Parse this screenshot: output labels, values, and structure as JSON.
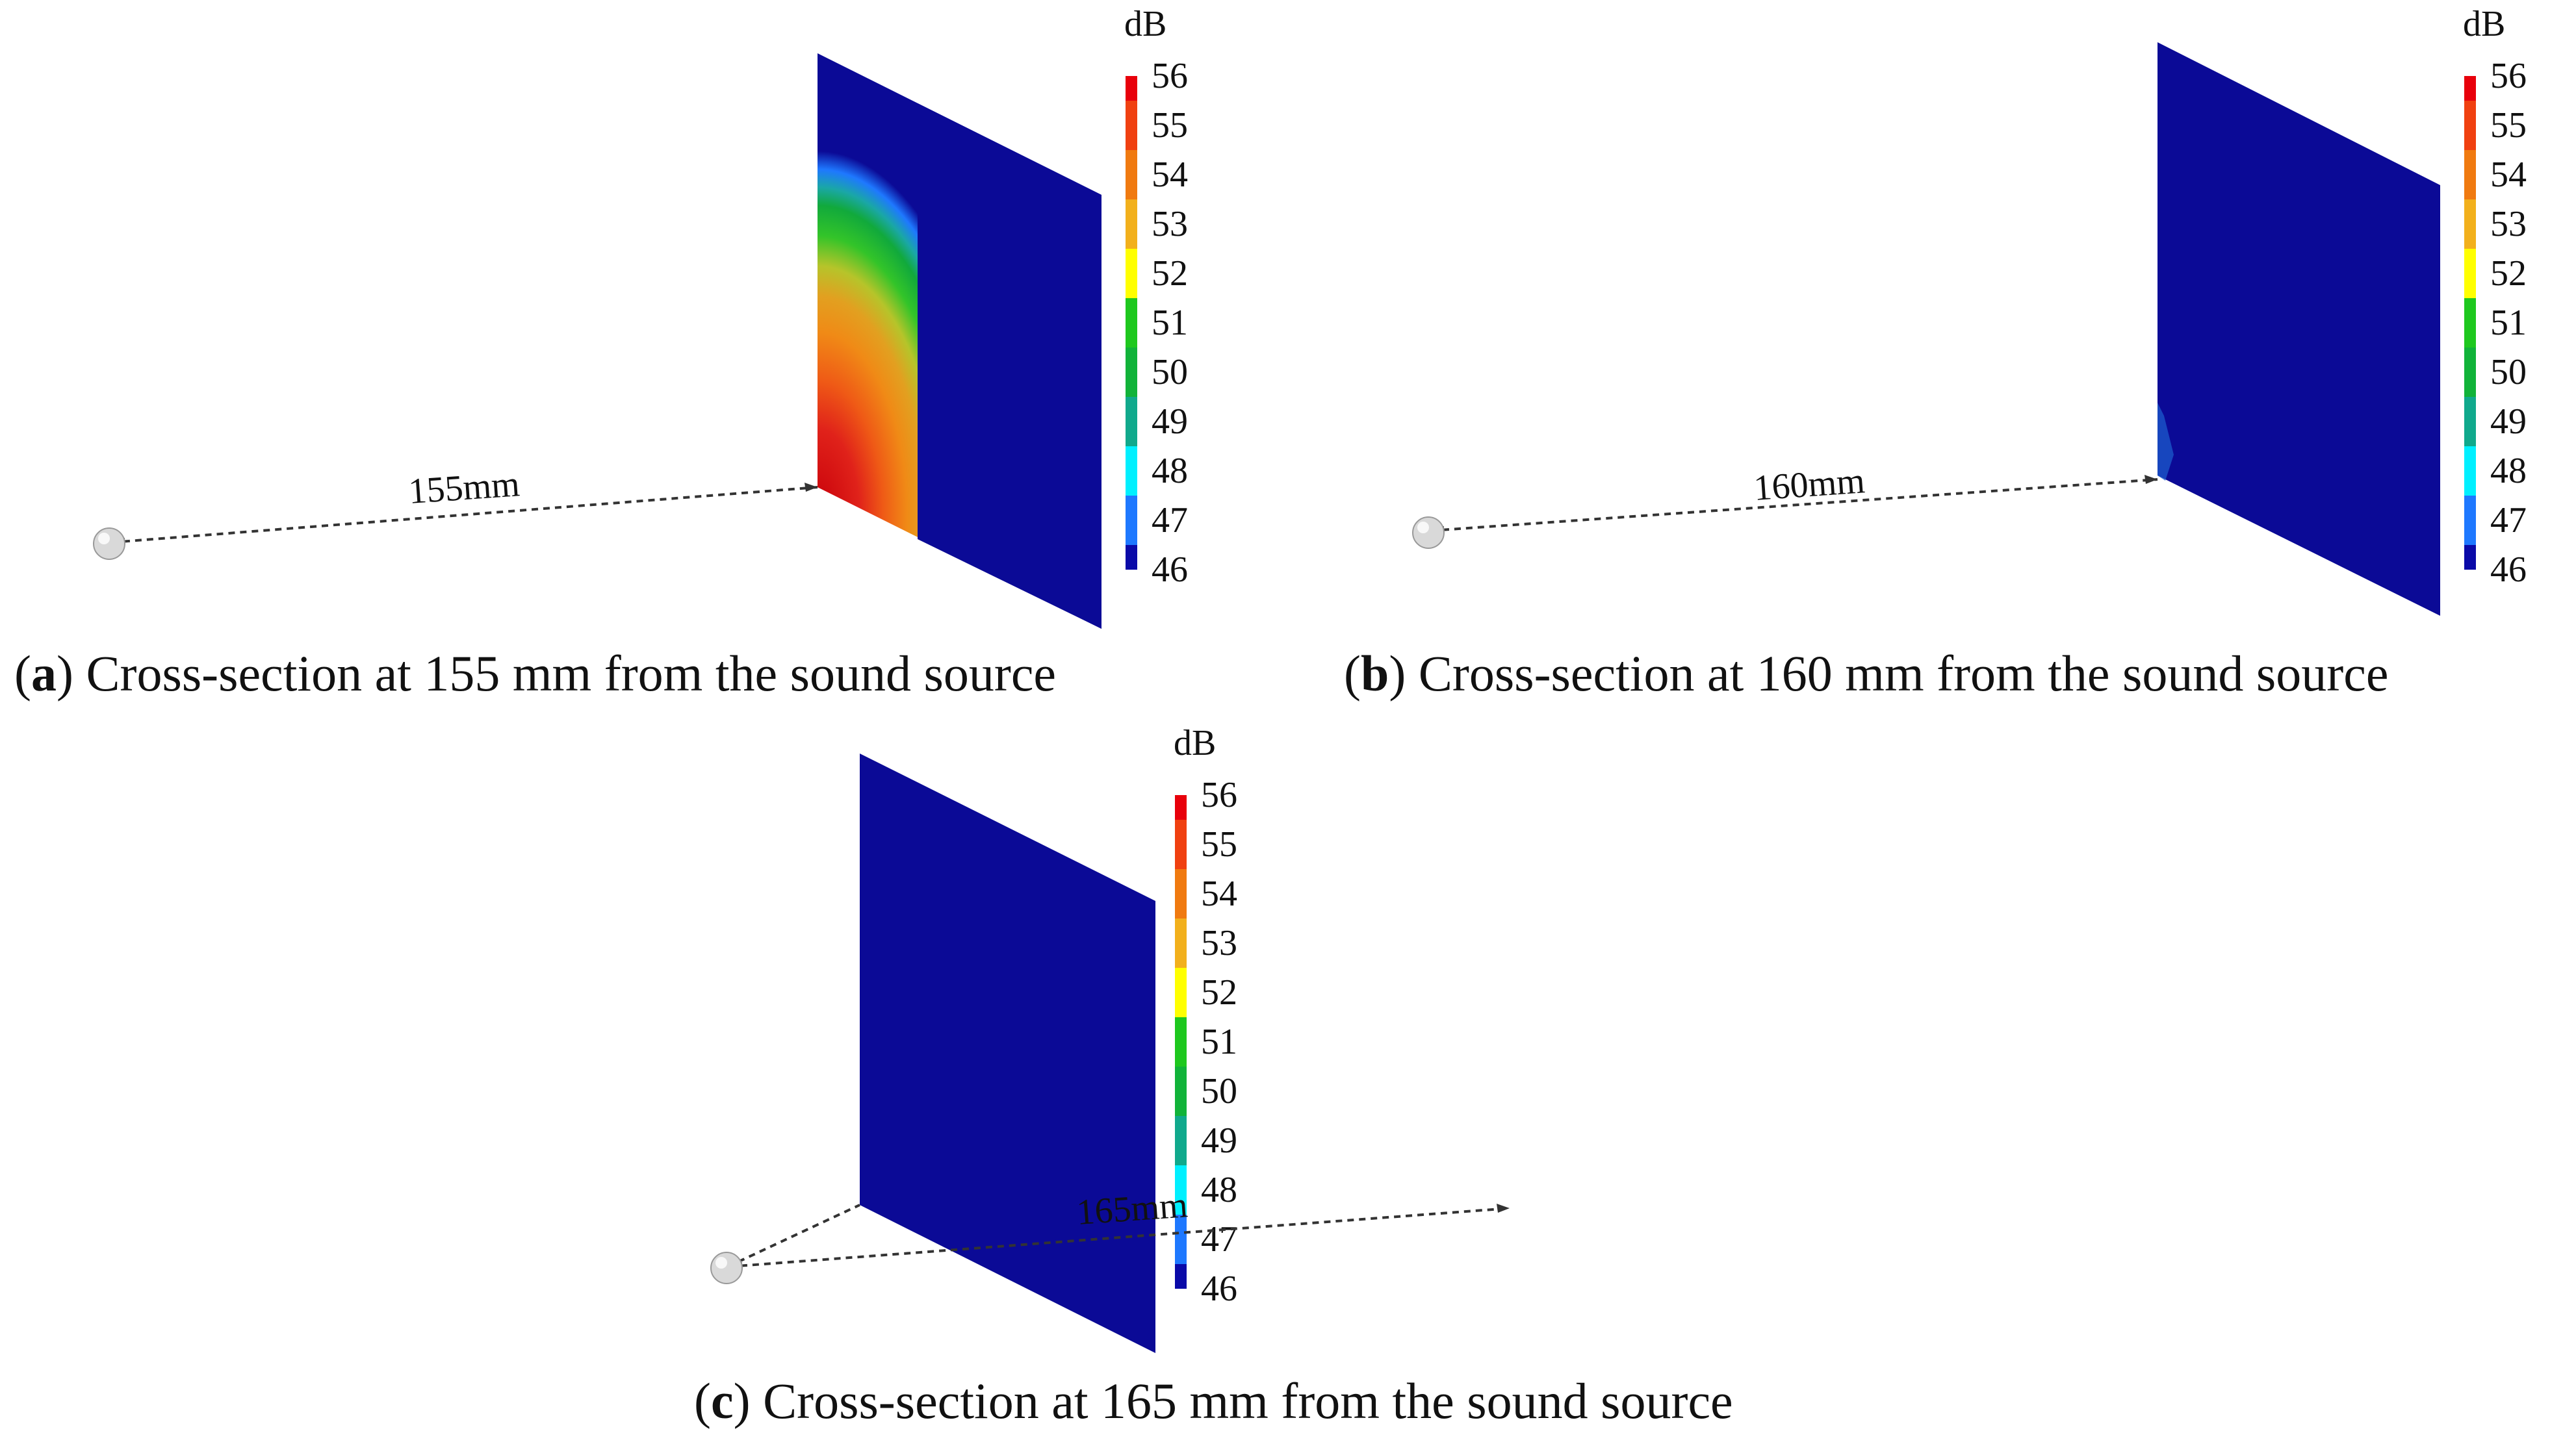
{
  "colorbar": {
    "unit": "dB",
    "ticks": [
      "56",
      "55",
      "54",
      "53",
      "52",
      "51",
      "50",
      "49",
      "48",
      "47",
      "46"
    ],
    "colors": [
      "#e8000b",
      "#f04010",
      "#f07a10",
      "#f2b01c",
      "#ffff00",
      "#1ec81e",
      "#11b339",
      "#10a98c",
      "#00f0ff",
      "#1e78ff",
      "#0a0aa8"
    ]
  },
  "panels": [
    {
      "id": "a",
      "letter": "a",
      "distance_label": "155mm",
      "caption_text": " Cross-section at 155 mm from the sound source"
    },
    {
      "id": "b",
      "letter": "b",
      "distance_label": "160mm",
      "caption_text": " Cross-section at 160 mm from the sound source"
    },
    {
      "id": "c",
      "letter": "c",
      "distance_label": "165mm",
      "caption_text": " Cross-section at 165 mm from the sound source"
    }
  ],
  "colors": {
    "plane_blue": "#0b0a96",
    "dashed_line": "#333333"
  }
}
